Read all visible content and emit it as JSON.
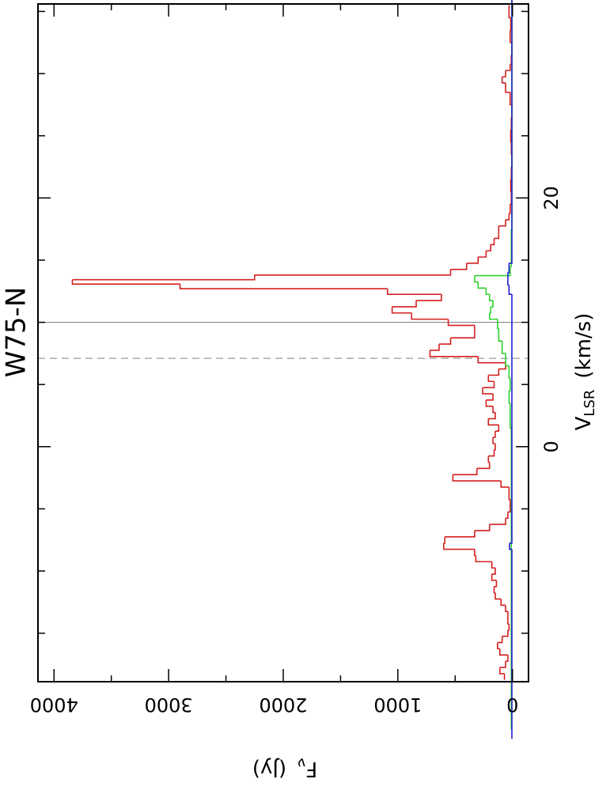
{
  "chart_data": {
    "type": "step",
    "title": "W75-N",
    "x_label": {
      "main": "V",
      "sub": "LSR",
      "unit": "(km/s)"
    },
    "y_label": {
      "main": "F",
      "sub": "ν",
      "unit": "(Jy)"
    },
    "xlim": [
      -18.9,
      35.6
    ],
    "xticks": [
      0,
      20
    ],
    "xminor_ticks": [
      -15,
      -10,
      -5,
      5,
      10,
      15,
      25,
      30,
      35
    ],
    "ylim": [
      -140,
      4140
    ],
    "yticks": [
      0,
      1000,
      2000,
      3000,
      4000
    ],
    "yminor_ticks": [
      500,
      1500,
      2500,
      3500
    ],
    "vlines": [
      {
        "value": 10,
        "style": "solid",
        "color": "#888888"
      },
      {
        "value": 7.1,
        "style": "dashed",
        "color": "#999999"
      }
    ],
    "series": [
      {
        "color": "#d42020",
        "x": [
          -18.5,
          -18,
          -17.5,
          -17,
          -16.5,
          -16,
          -15.5,
          -15,
          -14.5,
          -14,
          -13.5,
          -13,
          -12.5,
          -12,
          -11.5,
          -11,
          -10.5,
          -10,
          -9.5,
          -9,
          -8.5,
          -8,
          -7.5,
          -7,
          -6.5,
          -6,
          -5.5,
          -5,
          -4.5,
          -4,
          -3.5,
          -3,
          -2.5,
          -2,
          -1.5,
          -1,
          -0.5,
          0,
          0.5,
          1,
          1.5,
          2,
          2.5,
          3,
          3.5,
          4,
          4.5,
          5,
          5.5,
          6,
          6.5,
          7,
          7.5,
          8,
          8.5,
          9,
          9.5,
          10,
          10.5,
          11,
          11.5,
          12,
          12.5,
          12.9,
          13.25,
          13.6,
          14,
          14.5,
          15,
          15.5,
          16,
          16.5,
          17,
          17.5,
          18,
          18.5,
          19,
          20,
          21,
          22,
          23,
          24,
          25,
          26,
          27,
          28,
          29,
          29.5,
          30,
          30.5,
          31,
          32,
          33,
          34,
          35
        ],
        "values": [
          70,
          110,
          60,
          40,
          110,
          130,
          90,
          40,
          30,
          40,
          40,
          60,
          100,
          150,
          160,
          140,
          180,
          150,
          180,
          320,
          330,
          600,
          590,
          330,
          200,
          60,
          40,
          20,
          20,
          30,
          30,
          100,
          520,
          310,
          200,
          210,
          160,
          150,
          170,
          150,
          120,
          210,
          150,
          170,
          230,
          170,
          260,
          160,
          210,
          120,
          60,
          300,
          720,
          640,
          540,
          330,
          330,
          560,
          880,
          1050,
          840,
          620,
          1090,
          2900,
          3840,
          2250,
          540,
          400,
          300,
          230,
          190,
          160,
          120,
          120,
          60,
          30,
          20,
          10,
          15,
          10,
          5,
          10,
          15,
          10,
          5,
          20,
          60,
          90,
          60,
          20,
          10,
          5,
          20,
          15,
          30
        ]
      },
      {
        "color": "#30d030",
        "x": [
          -18.5,
          -10,
          0,
          3,
          4,
          5,
          6,
          7,
          8,
          9,
          10,
          10.5,
          11,
          11.5,
          12,
          12.5,
          13,
          13.5,
          14,
          15,
          20,
          35
        ],
        "values": [
          10,
          10,
          10,
          20,
          30,
          20,
          30,
          60,
          90,
          120,
          130,
          200,
          190,
          170,
          200,
          230,
          300,
          330,
          20,
          10,
          5,
          5
        ]
      },
      {
        "color": "#2020d0",
        "x": [
          -18.5,
          -8.5,
          -8,
          -7.5,
          12,
          12.5,
          13.5,
          14.5,
          15,
          35
        ],
        "values": [
          5,
          5,
          25,
          5,
          5,
          30,
          40,
          30,
          5,
          5
        ]
      }
    ]
  }
}
